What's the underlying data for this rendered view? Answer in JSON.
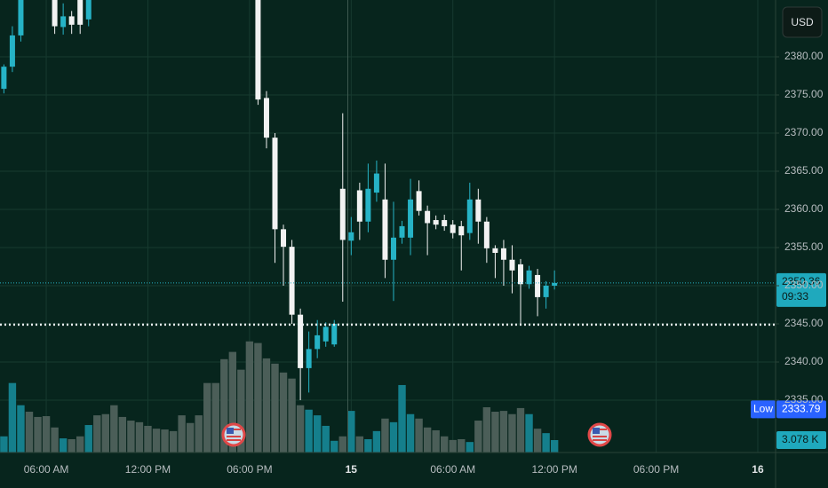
{
  "chart_data": {
    "type": "candlestick",
    "currency": "USD",
    "x": [
      3.5,
      4,
      4.5,
      5,
      5.5,
      6,
      6.5,
      7,
      7.5,
      8,
      8.5,
      9,
      9.5,
      10,
      10.5,
      11,
      11.5,
      12,
      12.5,
      13,
      13.5,
      14,
      14.5,
      15,
      15.5,
      16,
      16.5,
      17,
      17.5,
      18,
      18.5,
      19,
      19.5,
      20,
      20.5,
      21,
      21.5,
      22,
      22.5,
      23,
      23.5,
      24,
      24.5,
      25,
      25.5,
      26,
      26.5,
      27,
      27.5,
      28,
      28.5,
      29,
      29.5,
      30,
      30.5,
      31,
      31.5,
      32,
      32.5,
      33,
      33.5,
      34,
      34.5,
      35,
      35.5,
      36
    ],
    "open": [
      2375.8,
      2378.7,
      2382.8,
      null,
      null,
      null,
      2388,
      2383.9,
      2385.3,
      2388,
      2384.9,
      null,
      null,
      null,
      null,
      null,
      null,
      null,
      null,
      null,
      null,
      null,
      null,
      null,
      null,
      null,
      null,
      null,
      null,
      null,
      2388,
      2374.6,
      2369.4,
      2357.4,
      2355.1,
      2346.2,
      2339.2,
      2341.7,
      2342.7,
      2342.3,
      2362.7,
      2355.9,
      2362.5,
      2358.4,
      2362.2,
      2361.3,
      2353.4,
      2356.3,
      2356.3,
      2362.4,
      2359.8,
      2358.6,
      2358.6,
      2358.0,
      2357.8,
      2356.9,
      2361.3,
      2358.4,
      2354.9,
      2354.9,
      2353.4,
      2352.8,
      2350.2,
      2351.4,
      2348.5,
      2350.0
    ],
    "high": [
      2379.0,
      2384.0,
      2389,
      null,
      null,
      null,
      2389,
      2387,
      2386,
      2389,
      2389,
      null,
      null,
      null,
      null,
      null,
      null,
      null,
      null,
      null,
      null,
      null,
      null,
      null,
      null,
      null,
      null,
      null,
      null,
      null,
      2389,
      2375.5,
      2370,
      2358,
      2356,
      2347,
      2344,
      2345.5,
      2345.2,
      2345.5,
      2372.6,
      2359,
      2363.5,
      2366,
      2366.4,
      2366,
      2361,
      2358.5,
      2364,
      2363.8,
      2360.5,
      2359.2,
      2359.3,
      2358.6,
      2358.5,
      2363.5,
      2362.7,
      2359,
      2355.3,
      2356,
      2355.3,
      2353.5,
      2352.6,
      2352.2,
      2350.6,
      2352
    ],
    "low": [
      2375.2,
      2378,
      2382,
      null,
      null,
      null,
      2383,
      2382.9,
      2383,
      2383,
      2384,
      null,
      null,
      null,
      null,
      null,
      null,
      null,
      null,
      null,
      null,
      null,
      null,
      null,
      null,
      null,
      null,
      null,
      null,
      null,
      2373.7,
      2368,
      2353,
      2350,
      2345,
      2335,
      2336,
      2340.5,
      2342,
      2342,
      2347.9,
      2354,
      2356,
      2357,
      2361,
      2351,
      2348,
      2355.5,
      2354,
      2359.2,
      2354,
      2357.4,
      2357.2,
      2356.2,
      2352,
      2356,
      2355.5,
      2353,
      2351,
      2350,
      2349,
      2345,
      2349.6,
      2346,
      2347,
      2349.5
    ],
    "close": [
      2378.7,
      2382.8,
      2388,
      null,
      null,
      null,
      2384.0,
      2385.3,
      2384.2,
      2384.2,
      2388,
      null,
      null,
      null,
      null,
      null,
      null,
      null,
      null,
      null,
      null,
      null,
      null,
      null,
      null,
      null,
      null,
      null,
      null,
      null,
      2374.4,
      2369.4,
      2357.4,
      2355.1,
      2346.2,
      2339.2,
      2341.7,
      2343.5,
      2344.6,
      2345.0,
      2356.0,
      2357.0,
      2358.4,
      2362.7,
      2364.7,
      2353.4,
      2356.3,
      2357.8,
      2361.3,
      2359.8,
      2358.2,
      2358.0,
      2357.8,
      2356.9,
      2356.6,
      2361.3,
      2358.4,
      2354.9,
      2354.3,
      2353.4,
      2352.0,
      2350.2,
      2352.0,
      2348.5,
      2350.0,
      2350.36
    ],
    "volume": [
      4.0,
      17.2,
      11.7,
      10.1,
      8.8,
      9.0,
      6.2,
      3.5,
      3.3,
      4.0,
      6.8,
      9.2,
      9.5,
      11.7,
      8.8,
      7.9,
      7.5,
      6.6,
      5.9,
      5.7,
      5.3,
      9.2,
      7.3,
      9.2,
      17.2,
      17.2,
      23.1,
      24.9,
      20.5,
      27.5,
      27.1,
      23.3,
      22.0,
      19.8,
      18.3,
      11.7,
      10.6,
      9.2,
      6.6,
      2.9,
      4.0,
      10.3,
      4.0,
      3.3,
      5.3,
      8.4,
      7.5,
      16.7,
      9.5,
      8.4,
      6.2,
      5.5,
      4.0,
      3.1,
      3.3,
      2.6,
      7.9,
      11.2,
      10.1,
      10.3,
      9.5,
      11.0,
      9.5,
      5.9,
      4.8,
      3.078
    ],
    "last_volume_label": "3.078 K",
    "volume_lim": [
      0,
      112
    ],
    "up_color": "#26b3c6",
    "down_color": "#f2f2f2",
    "volume_up_color": "#157f8c",
    "volume_down_color": "#4b5e58",
    "countdown": "09:33",
    "low_label": "Low",
    "low_value": 2333.79,
    "horizontal_line": 2344.9,
    "crosshair_x": 23.8,
    "xlim": [
      3.27,
      49.05
    ],
    "xticks": [
      {
        "value": 6,
        "label": "06:00 AM"
      },
      {
        "value": 12,
        "label": "12:00 PM"
      },
      {
        "value": 18,
        "label": "06:00 PM"
      },
      {
        "value": 24,
        "label": "15"
      },
      {
        "value": 30,
        "label": "06:00 AM"
      },
      {
        "value": 36,
        "label": "12:00 PM"
      },
      {
        "value": 42,
        "label": "06:00 PM"
      },
      {
        "value": 48,
        "label": "16"
      }
    ],
    "ylim": [
      2328.14,
      2387.44
    ],
    "yticks": [
      {
        "value": 2335,
        "label": "2335.00"
      },
      {
        "value": 2340,
        "label": "2340.00"
      },
      {
        "value": 2345,
        "label": "2345.00"
      },
      {
        "value": 2350,
        "label": "2350.00"
      },
      {
        "value": 2355,
        "label": "2355.00"
      },
      {
        "value": 2360,
        "label": "2360.00"
      },
      {
        "value": 2365,
        "label": "2365.00"
      },
      {
        "value": 2370,
        "label": "2370.00"
      },
      {
        "value": 2375,
        "label": "2375.00"
      },
      {
        "value": 2380,
        "label": "2380.00"
      }
    ],
    "grid": true
  }
}
